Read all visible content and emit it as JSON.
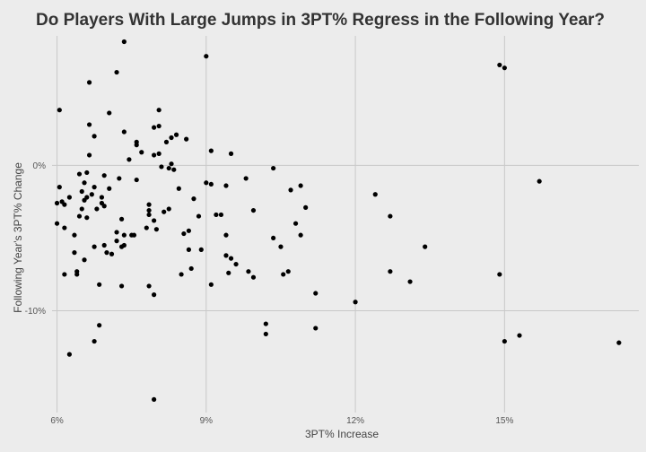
{
  "chart_data": {
    "type": "scatter",
    "title": "Do Players With Large Jumps in 3PT% Regress in the Following Year?",
    "xlabel": "3PT% Increase",
    "ylabel": "Following Year's 3PT% Change",
    "xlim": [
      5.9,
      17.7
    ],
    "ylim": [
      -17.0,
      8.9
    ],
    "x_ticks": [
      {
        "value": 6,
        "label": "6%"
      },
      {
        "value": 9,
        "label": "9%"
      },
      {
        "value": 12,
        "label": "12%"
      },
      {
        "value": 15,
        "label": "15%"
      }
    ],
    "y_ticks": [
      {
        "value": 0,
        "label": "0%"
      },
      {
        "value": -10,
        "label": "-10%"
      }
    ],
    "grid": true,
    "point_color": "#000000",
    "points": [
      [
        7.35,
        8.5
      ],
      [
        9.0,
        7.5
      ],
      [
        14.9,
        6.9
      ],
      [
        15.0,
        6.7
      ],
      [
        6.65,
        5.7
      ],
      [
        7.2,
        6.4
      ],
      [
        6.05,
        3.8
      ],
      [
        7.05,
        3.6
      ],
      [
        8.05,
        3.8
      ],
      [
        6.65,
        2.8
      ],
      [
        7.95,
        2.6
      ],
      [
        8.05,
        2.7
      ],
      [
        7.35,
        2.3
      ],
      [
        8.4,
        2.1
      ],
      [
        8.6,
        1.8
      ],
      [
        6.75,
        2.0
      ],
      [
        7.6,
        1.6
      ],
      [
        7.6,
        1.4
      ],
      [
        8.3,
        1.9
      ],
      [
        8.2,
        1.6
      ],
      [
        9.1,
        1.0
      ],
      [
        9.5,
        0.8
      ],
      [
        7.45,
        0.4
      ],
      [
        7.7,
        0.9
      ],
      [
        7.95,
        0.7
      ],
      [
        8.05,
        0.8
      ],
      [
        8.3,
        0.1
      ],
      [
        8.25,
        -0.2
      ],
      [
        8.35,
        -0.3
      ],
      [
        8.1,
        -0.1
      ],
      [
        6.65,
        0.7
      ],
      [
        6.6,
        -0.5
      ],
      [
        6.45,
        -0.6
      ],
      [
        6.95,
        -0.7
      ],
      [
        7.25,
        -0.9
      ],
      [
        6.55,
        -1.2
      ],
      [
        6.05,
        -1.5
      ],
      [
        6.5,
        -1.8
      ],
      [
        6.75,
        -1.5
      ],
      [
        7.05,
        -1.6
      ],
      [
        6.0,
        -2.6
      ],
      [
        6.1,
        -2.5
      ],
      [
        6.15,
        -2.7
      ],
      [
        6.25,
        -2.2
      ],
      [
        6.55,
        -2.4
      ],
      [
        6.6,
        -2.2
      ],
      [
        6.7,
        -2.0
      ],
      [
        6.9,
        -2.2
      ],
      [
        6.9,
        -2.6
      ],
      [
        6.95,
        -2.8
      ],
      [
        7.6,
        -1.0
      ],
      [
        7.85,
        -2.7
      ],
      [
        7.85,
        -3.1
      ],
      [
        7.85,
        -3.4
      ],
      [
        7.3,
        -3.7
      ],
      [
        7.2,
        -4.6
      ],
      [
        6.6,
        -3.6
      ],
      [
        6.45,
        -3.5
      ],
      [
        6.0,
        -4.0
      ],
      [
        6.15,
        -4.3
      ],
      [
        6.35,
        -4.8
      ],
      [
        6.8,
        -3.0
      ],
      [
        6.5,
        -3.0
      ],
      [
        7.95,
        -3.8
      ],
      [
        8.25,
        -3.0
      ],
      [
        8.15,
        -3.2
      ],
      [
        8.45,
        -1.6
      ],
      [
        8.75,
        -2.3
      ],
      [
        8.85,
        -3.5
      ],
      [
        8.65,
        -4.5
      ],
      [
        8.55,
        -4.7
      ],
      [
        8.0,
        -4.4
      ],
      [
        7.8,
        -4.3
      ],
      [
        7.5,
        -4.8
      ],
      [
        7.55,
        -4.8
      ],
      [
        7.35,
        -4.8
      ],
      [
        6.35,
        -6.0
      ],
      [
        6.4,
        -7.3
      ],
      [
        6.15,
        -7.5
      ],
      [
        6.4,
        -7.5
      ],
      [
        6.55,
        -6.5
      ],
      [
        6.75,
        -5.6
      ],
      [
        6.95,
        -5.5
      ],
      [
        7.2,
        -5.2
      ],
      [
        7.3,
        -5.6
      ],
      [
        7.35,
        -5.5
      ],
      [
        7.1,
        -6.1
      ],
      [
        7.0,
        -6.0
      ],
      [
        6.85,
        -8.2
      ],
      [
        7.3,
        -8.3
      ],
      [
        8.65,
        -5.8
      ],
      [
        8.9,
        -5.8
      ],
      [
        8.7,
        -7.1
      ],
      [
        8.5,
        -7.5
      ],
      [
        7.85,
        -8.3
      ],
      [
        7.95,
        -8.9
      ],
      [
        9.0,
        -1.2
      ],
      [
        9.1,
        -1.3
      ],
      [
        9.4,
        -1.4
      ],
      [
        9.2,
        -3.4
      ],
      [
        9.3,
        -3.4
      ],
      [
        9.4,
        -4.8
      ],
      [
        9.4,
        -6.2
      ],
      [
        9.5,
        -6.4
      ],
      [
        9.45,
        -7.4
      ],
      [
        9.6,
        -6.8
      ],
      [
        9.1,
        -8.2
      ],
      [
        9.8,
        -0.9
      ],
      [
        9.95,
        -3.1
      ],
      [
        9.85,
        -7.3
      ],
      [
        9.95,
        -7.7
      ],
      [
        10.35,
        -0.2
      ],
      [
        10.35,
        -5.0
      ],
      [
        10.5,
        -5.6
      ],
      [
        10.55,
        -7.5
      ],
      [
        10.65,
        -7.3
      ],
      [
        10.7,
        -1.7
      ],
      [
        10.8,
        -4.0
      ],
      [
        10.9,
        -1.4
      ],
      [
        10.9,
        -4.8
      ],
      [
        11.0,
        -2.9
      ],
      [
        11.2,
        -8.8
      ],
      [
        11.2,
        -11.2
      ],
      [
        10.2,
        -10.9
      ],
      [
        10.2,
        -11.6
      ],
      [
        12.4,
        -2.0
      ],
      [
        12.7,
        -3.5
      ],
      [
        12.7,
        -7.3
      ],
      [
        13.1,
        -8.0
      ],
      [
        13.4,
        -5.6
      ],
      [
        12.0,
        -9.4
      ],
      [
        6.25,
        -13.0
      ],
      [
        6.75,
        -12.1
      ],
      [
        6.85,
        -11.0
      ],
      [
        7.95,
        -16.1
      ],
      [
        14.9,
        -7.5
      ],
      [
        15.0,
        -12.1
      ],
      [
        15.3,
        -11.7
      ],
      [
        15.7,
        -1.1
      ],
      [
        17.3,
        -12.2
      ]
    ]
  }
}
